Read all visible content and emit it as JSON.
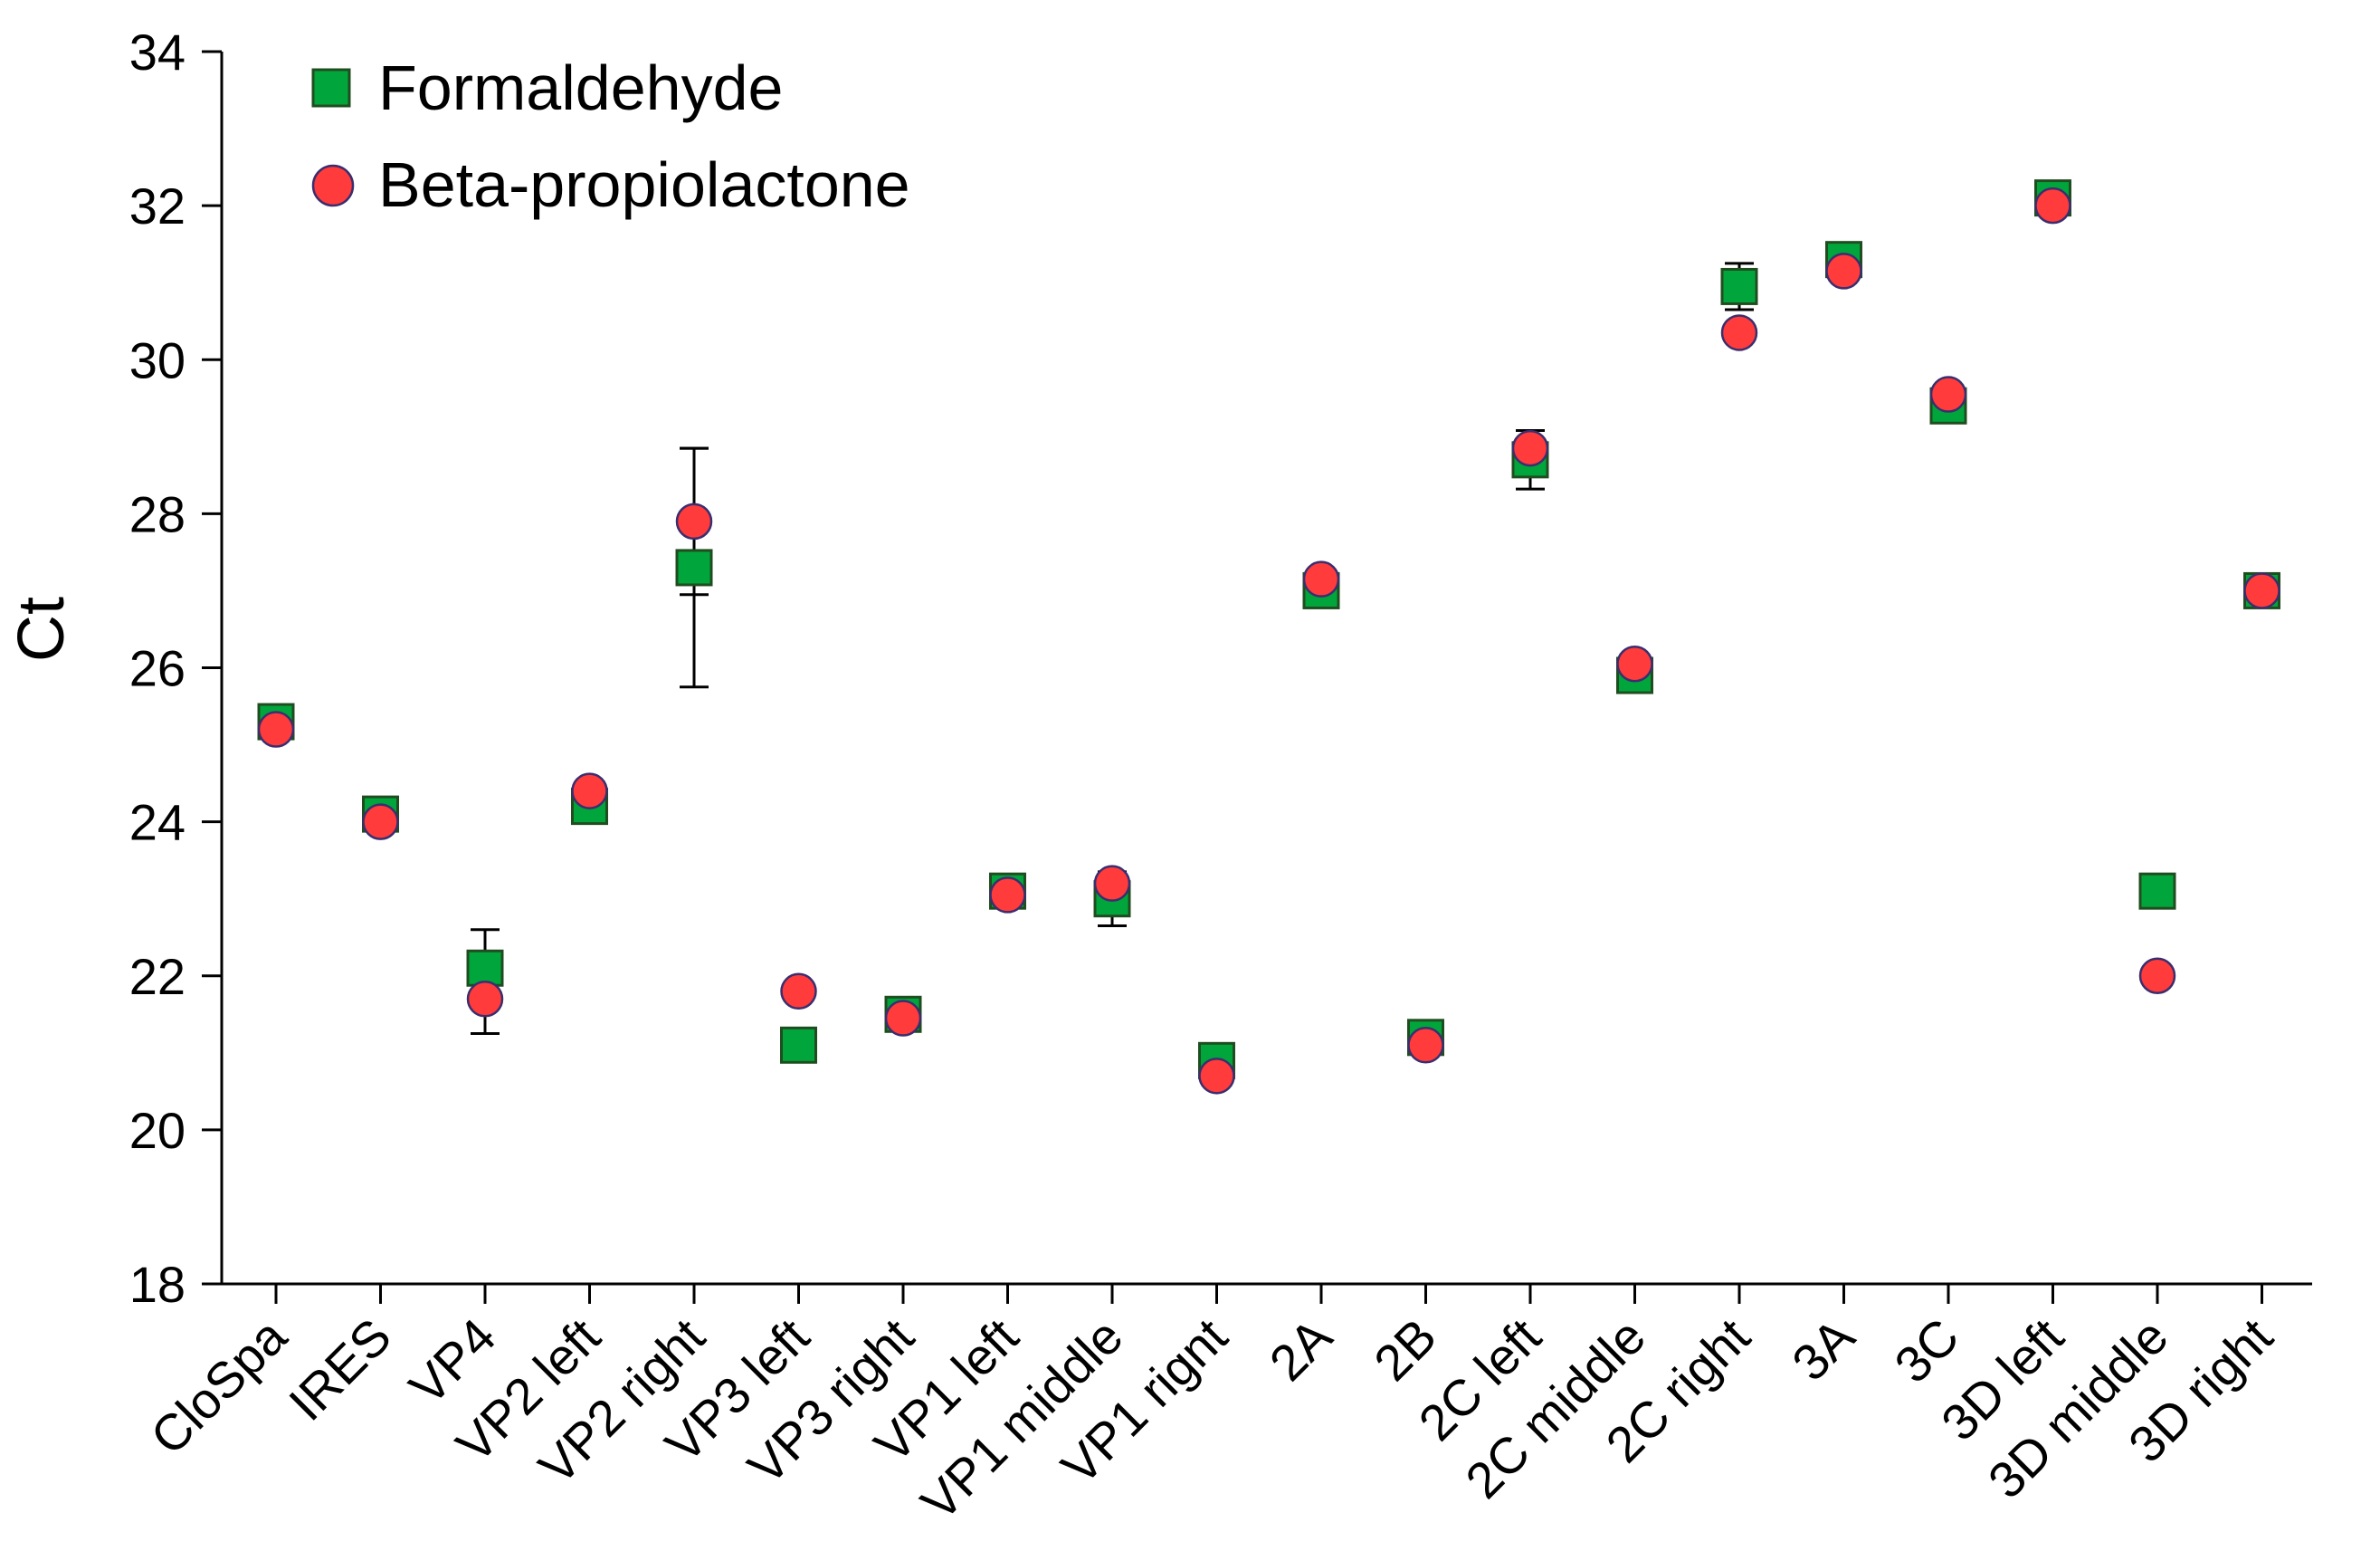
{
  "chart_data": {
    "type": "scatter",
    "title": "",
    "xlabel": "",
    "ylabel": "Ct",
    "ylim": [
      18,
      34
    ],
    "yticks": [
      "18",
      "20",
      "22",
      "24",
      "26",
      "28",
      "30",
      "32",
      "34"
    ],
    "grid": false,
    "legend_position": "top-left",
    "categories": [
      "CloSpa",
      "IRES",
      "VP4",
      "VP2 left",
      "VP2 right",
      "VP3 left",
      "VP3 right",
      "VP1 left",
      "VP1 middle",
      "VP1 rignt",
      "2A",
      "2B",
      "2C left",
      "2C middle",
      "2C right",
      "3A",
      "3C",
      "3D left",
      "3D middle",
      "3D right"
    ],
    "series": [
      {
        "name": "Formaldehyde",
        "marker": "square",
        "color": "#00a63c",
        "values": [
          25.3,
          24.1,
          22.1,
          24.2,
          27.3,
          21.1,
          21.5,
          23.1,
          23.0,
          20.9,
          27.0,
          21.2,
          28.7,
          25.9,
          30.95,
          31.3,
          29.4,
          32.1,
          23.1,
          27.0
        ],
        "errors": [
          0,
          0,
          0.5,
          0,
          1.55,
          0,
          0,
          0,
          0.35,
          0,
          0,
          0,
          0.38,
          0,
          0.3,
          0,
          0,
          0,
          0,
          0
        ]
      },
      {
        "name": "Beta-propiolactone",
        "marker": "circle",
        "color": "#ff3b3b",
        "values": [
          25.2,
          24.0,
          21.7,
          24.4,
          27.9,
          21.8,
          21.45,
          23.05,
          23.2,
          20.7,
          27.15,
          21.1,
          28.85,
          26.05,
          30.35,
          31.15,
          29.55,
          32.0,
          22.0,
          27.0
        ],
        "errors": [
          0,
          0,
          0.45,
          0,
          0.95,
          0,
          0,
          0,
          0,
          0,
          0,
          0,
          0,
          0,
          0,
          0,
          0,
          0,
          0,
          0
        ]
      }
    ]
  }
}
